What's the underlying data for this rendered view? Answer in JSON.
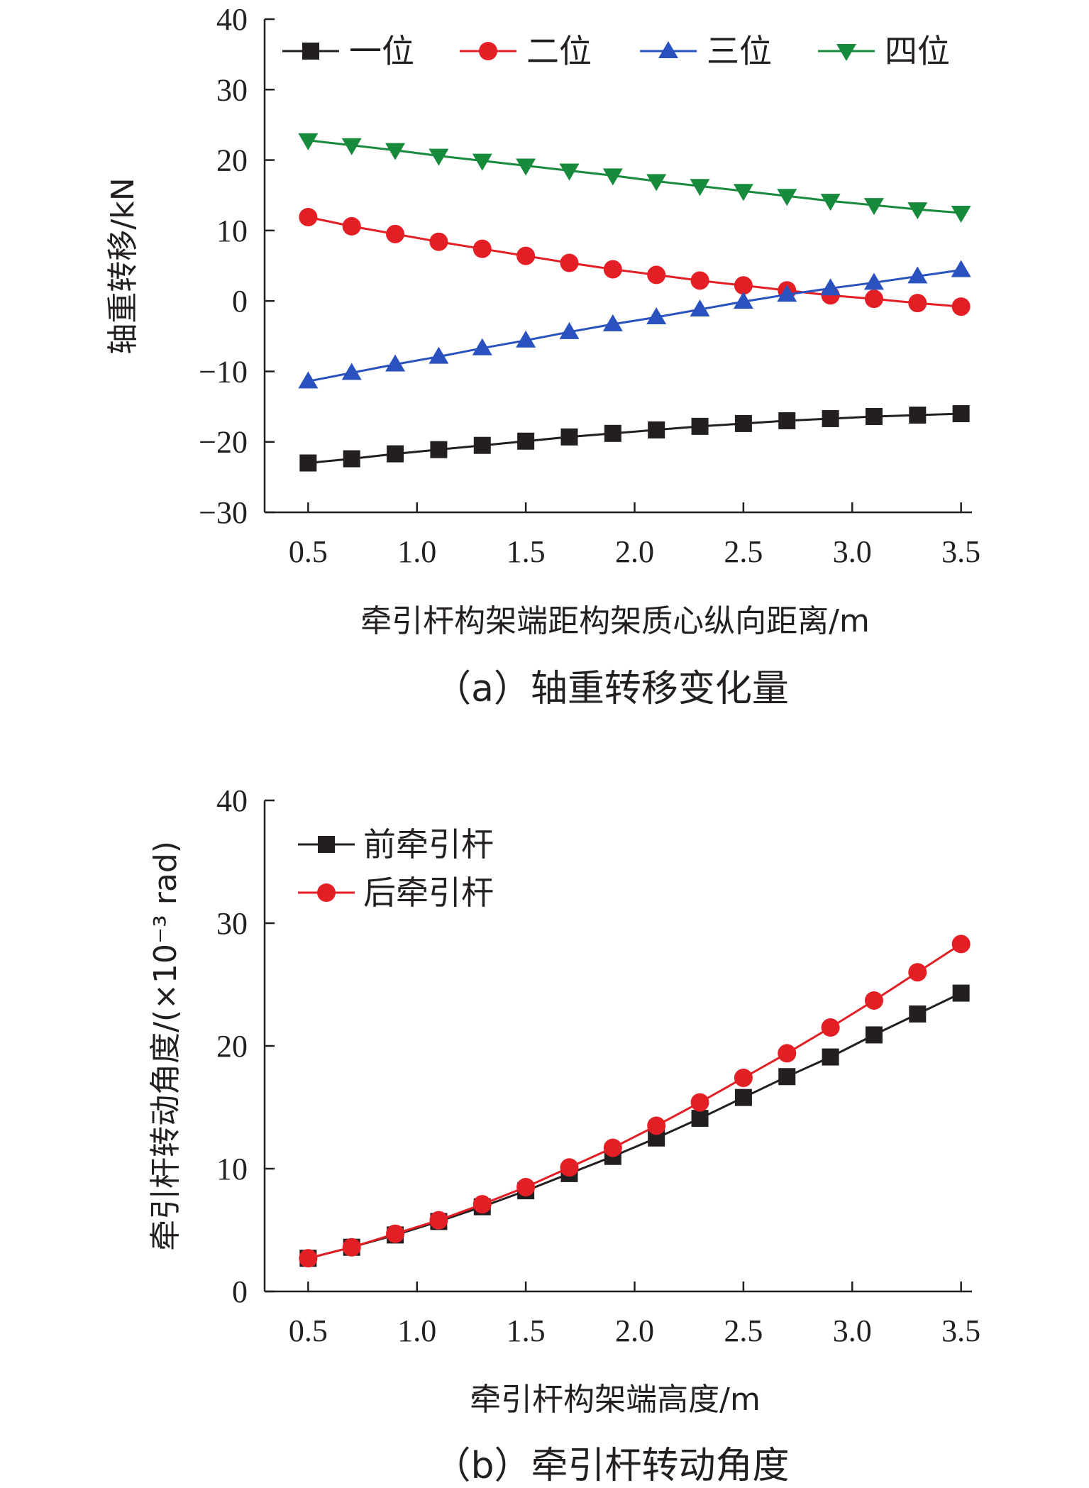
{
  "chart_data": [
    {
      "type": "line",
      "x": [
        0.5,
        0.7,
        0.9,
        1.1,
        1.3,
        1.5,
        1.7,
        1.9,
        2.1,
        2.3,
        2.5,
        2.7,
        2.9,
        3.1,
        3.3,
        3.5
      ],
      "xticks": [
        "0.5",
        "1.0",
        "1.5",
        "2.0",
        "2.5",
        "3.0",
        "3.5"
      ],
      "xtick_values": [
        0.5,
        1.0,
        1.5,
        2.0,
        2.5,
        3.0,
        3.5
      ],
      "yticks": [
        "40",
        "30",
        "20",
        "10",
        "0",
        "−10",
        "−20",
        "−30"
      ],
      "ytick_values": [
        40,
        30,
        20,
        10,
        0,
        -10,
        -20,
        -30
      ],
      "xlim": [
        0.3,
        3.55
      ],
      "ylim": [
        -30,
        40
      ],
      "xlabel": "牵引杆构架端距构架质心纵向距离/m",
      "ylabel": "轴重转移/kN",
      "caption": "（a）轴重转移变化量",
      "legend_position": "top",
      "series": [
        {
          "name": "一位",
          "color": "#231f20",
          "marker": "square",
          "values": [
            -23.0,
            -22.4,
            -21.7,
            -21.1,
            -20.5,
            -19.9,
            -19.3,
            -18.8,
            -18.3,
            -17.8,
            -17.4,
            -17.0,
            -16.7,
            -16.4,
            -16.2,
            -16.0
          ]
        },
        {
          "name": "二位",
          "color": "#e31e24",
          "marker": "circle",
          "values": [
            11.9,
            10.6,
            9.5,
            8.4,
            7.4,
            6.4,
            5.4,
            4.5,
            3.7,
            2.9,
            2.2,
            1.5,
            0.8,
            0.3,
            -0.3,
            -0.8
          ]
        },
        {
          "name": "三位",
          "color": "#2a52be",
          "marker": "triangle-up",
          "values": [
            -11.4,
            -10.2,
            -9.0,
            -7.9,
            -6.7,
            -5.6,
            -4.4,
            -3.3,
            -2.3,
            -1.2,
            -0.1,
            0.9,
            1.8,
            2.6,
            3.5,
            4.4
          ]
        },
        {
          "name": "四位",
          "color": "#178a3c",
          "marker": "triangle-down",
          "values": [
            22.8,
            22.1,
            21.4,
            20.6,
            19.9,
            19.2,
            18.5,
            17.8,
            17.0,
            16.3,
            15.6,
            14.9,
            14.2,
            13.6,
            13.0,
            12.5
          ]
        }
      ]
    },
    {
      "type": "line",
      "x": [
        0.5,
        0.7,
        0.9,
        1.1,
        1.3,
        1.5,
        1.7,
        1.9,
        2.1,
        2.3,
        2.5,
        2.7,
        2.9,
        3.1,
        3.3,
        3.5
      ],
      "xticks": [
        "0.5",
        "1.0",
        "1.5",
        "2.0",
        "2.5",
        "3.0",
        "3.5"
      ],
      "xtick_values": [
        0.5,
        1.0,
        1.5,
        2.0,
        2.5,
        3.0,
        3.5
      ],
      "yticks": [
        "40",
        "30",
        "20",
        "10",
        "0"
      ],
      "ytick_values": [
        40,
        30,
        20,
        10,
        0
      ],
      "xlim": [
        0.3,
        3.55
      ],
      "ylim": [
        0,
        40
      ],
      "xlabel": "牵引杆构架端高度/m",
      "ylabel": "牵引杆转动角度/(×10⁻³ rad)",
      "caption": "（b）牵引杆转动角度",
      "legend_position": "top-left",
      "series": [
        {
          "name": "前牵引杆",
          "color": "#231f20",
          "marker": "square",
          "values": [
            2.7,
            3.6,
            4.6,
            5.7,
            6.9,
            8.2,
            9.6,
            11.0,
            12.5,
            14.1,
            15.8,
            17.5,
            19.1,
            20.9,
            22.6,
            24.3
          ]
        },
        {
          "name": "后牵引杆",
          "color": "#e31e24",
          "marker": "circle",
          "values": [
            2.7,
            3.6,
            4.7,
            5.8,
            7.1,
            8.5,
            10.1,
            11.7,
            13.5,
            15.4,
            17.4,
            19.4,
            21.5,
            23.7,
            26.0,
            28.3
          ]
        }
      ]
    }
  ]
}
